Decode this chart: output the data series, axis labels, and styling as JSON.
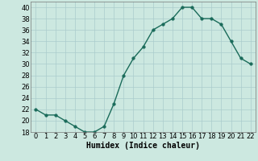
{
  "x": [
    0,
    1,
    2,
    3,
    4,
    5,
    6,
    7,
    8,
    9,
    10,
    11,
    12,
    13,
    14,
    15,
    16,
    17,
    18,
    19,
    20,
    21,
    22
  ],
  "y": [
    22,
    21,
    21,
    20,
    19,
    18,
    18,
    19,
    23,
    28,
    31,
    33,
    36,
    37,
    38,
    40,
    40,
    38,
    38,
    37,
    34,
    31,
    30
  ],
  "line_color": "#1a6b5a",
  "marker_color": "#1a6b5a",
  "bg_color": "#cce8e0",
  "grid_color": "#aacccc",
  "xlabel": "Humidex (Indice chaleur)",
  "ylim": [
    18,
    41
  ],
  "xlim": [
    -0.5,
    22.5
  ],
  "yticks": [
    18,
    20,
    22,
    24,
    26,
    28,
    30,
    32,
    34,
    36,
    38,
    40
  ],
  "xticks": [
    0,
    1,
    2,
    3,
    4,
    5,
    6,
    7,
    8,
    9,
    10,
    11,
    12,
    13,
    14,
    15,
    16,
    17,
    18,
    19,
    20,
    21,
    22
  ],
  "xlabel_fontsize": 7,
  "tick_fontsize": 6,
  "line_width": 1.0,
  "marker_size": 2.5
}
